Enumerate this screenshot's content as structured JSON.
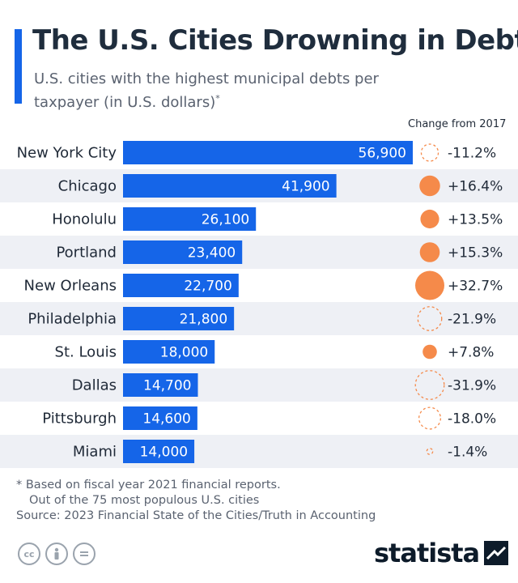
{
  "header": {
    "title": "The U.S. Cities Drowning in Debt",
    "subtitle": "U.S. cities with the highest municipal debts per taxpayer (in U.S. dollars)",
    "subtitle_mark": "*",
    "change_header": "Change from 2017"
  },
  "chart_data": {
    "type": "bar",
    "orientation": "horizontal",
    "categories": [
      "New York City",
      "Chicago",
      "Honolulu",
      "Portland",
      "New Orleans",
      "Philadelphia",
      "St. Louis",
      "Dallas",
      "Pittsburgh",
      "Miami"
    ],
    "values": [
      56900,
      41900,
      26100,
      23400,
      22700,
      21800,
      18000,
      14700,
      14600,
      14000
    ],
    "value_labels": [
      "56,900",
      "41,900",
      "26,100",
      "23,400",
      "22,700",
      "21,800",
      "18,000",
      "14,700",
      "14,600",
      "14,000"
    ],
    "change_pct": [
      -11.2,
      16.4,
      13.5,
      15.3,
      32.7,
      -21.9,
      7.8,
      -31.9,
      -18.0,
      -1.4
    ],
    "change_labels": [
      "-11.2%",
      "+16.4%",
      "+13.5%",
      "+15.3%",
      "+32.7%",
      "-21.9%",
      "+7.8%",
      "-31.9%",
      "-18.0%",
      "-1.4%"
    ],
    "xlim": [
      0,
      56900
    ],
    "grid": false,
    "colors": {
      "bar": "#1565e8",
      "positive_change": "#f58a4a",
      "negative_change": "#f58a4a",
      "stripe": "#eef0f5"
    }
  },
  "footer": {
    "note_line1": "* Based on fiscal year 2021 financial reports.",
    "note_line2": "Out of the 75 most populous U.S. cities",
    "source": "Source: 2023 Financial State of the Cities/Truth in Accounting",
    "license_icons": [
      "cc-icon",
      "person-icon",
      "equals-icon"
    ],
    "brand": "statista"
  }
}
